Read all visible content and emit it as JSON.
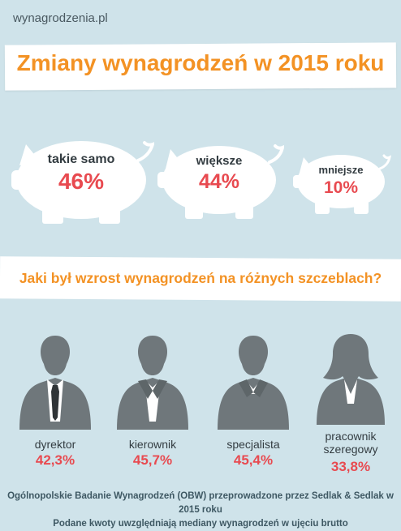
{
  "site": {
    "name": "wynagrodzenia.pl"
  },
  "header": {
    "title": "Zmiany wynagrodzeń w 2015 roku"
  },
  "changes": [
    {
      "label": "takie samo",
      "value": "46%"
    },
    {
      "label": "większe",
      "value": "44%"
    },
    {
      "label": "mniejsze",
      "value": "10%"
    }
  ],
  "section": {
    "title": "Jaki był wzrost wynagrodzeń na różnych szczeblach?"
  },
  "roles": [
    {
      "label": "dyrektor",
      "value": "42,3%"
    },
    {
      "label": "kierownik",
      "value": "45,7%"
    },
    {
      "label": "specjalista",
      "value": "45,4%"
    },
    {
      "label_line1": "pracownik",
      "label_line2": "szeregowy",
      "value": "33,8%"
    }
  ],
  "footer": {
    "line1": "Ogólnopolskie Badanie Wynagrodzeń (OBW) przeprowadzone przez Sedlak & Sedlak w 2015 roku",
    "line2": "Podane kwoty uwzględniają mediany wynagrodzeń w ujęciu brutto"
  },
  "colors": {
    "accent": "#f39224",
    "value": "#e84a50",
    "background": "#cfe3ea",
    "figure": "#6f777b"
  }
}
